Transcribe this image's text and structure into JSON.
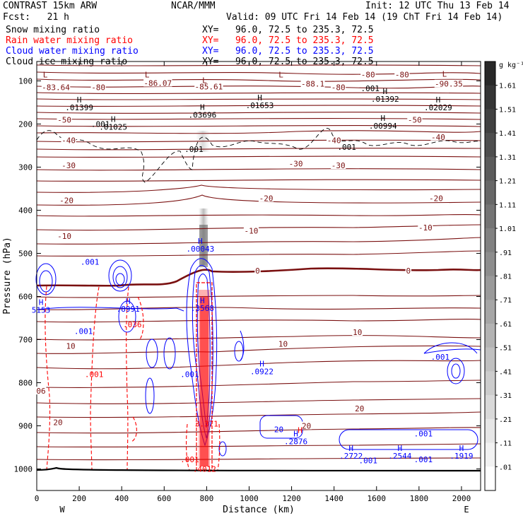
{
  "header": {
    "model": "CONTRAST 15km ARW",
    "center": "NCAR/MMM",
    "init": "Init: 12 UTC Thu 13 Feb 14",
    "fcst": "Fcst:   21 h",
    "valid": "Valid: 09 UTC Fri 14 Feb 14 (19 ChT Fri 14 Feb 14)"
  },
  "fields": [
    {
      "name": "Snow mixing ratio",
      "xy": "XY=   96.0, 72.5 to 235.3, 72.5",
      "color": "#000000"
    },
    {
      "name": "Rain water mixing ratio",
      "xy": "XY=   96.0, 72.5 to 235.3, 72.5",
      "color": "#ff0000"
    },
    {
      "name": "Cloud water mixing ratio",
      "xy": "XY=   96.0, 72.5 to 235.3, 72.5",
      "color": "#0000ff"
    },
    {
      "name": "Cloud ice mixing ratio",
      "xy": "XY=   96.0, 72.5 to 235.3, 72.5",
      "color": "#000000"
    }
  ],
  "chart_data": {
    "type": "heatmap",
    "xlabel": "Distance (km)",
    "ylabel": "Pressure (hPa)",
    "x_ticks": [
      0,
      200,
      400,
      600,
      800,
      1000,
      1200,
      1400,
      1600,
      1800,
      2000
    ],
    "y_ticks": [
      100,
      200,
      300,
      400,
      500,
      600,
      700,
      800,
      900,
      1000
    ],
    "xlim": [
      0,
      2090
    ],
    "ylim": [
      1050,
      55
    ],
    "x_end_labels": {
      "left": "W",
      "right": "E"
    },
    "colorbar": {
      "unit": "g kg⁻¹",
      "levels": [
        "1.61",
        "1.51",
        "1.41",
        "1.31",
        "1.21",
        "1.11",
        "1.01",
        ".91",
        ".81",
        ".71",
        ".61",
        ".51",
        ".41",
        ".31",
        ".21",
        ".11",
        ".01"
      ]
    },
    "temperature_labels": [
      {
        "text": "-83.64",
        "x": 90,
        "p": 115
      },
      {
        "text": "-80",
        "x": 290,
        "p": 115
      },
      {
        "text": "-86.07",
        "x": 570,
        "p": 105
      },
      {
        "text": "-85.61",
        "x": 810,
        "p": 113
      },
      {
        "text": "-88.1",
        "x": 1300,
        "p": 107
      },
      {
        "text": "-80",
        "x": 1420,
        "p": 115
      },
      {
        "text": "-80",
        "x": 1560,
        "p": 85
      },
      {
        "text": "-80",
        "x": 1720,
        "p": 85
      },
      {
        "text": "-90.35",
        "x": 1940,
        "p": 107
      },
      {
        "text": "-50",
        "x": 130,
        "p": 190
      },
      {
        "text": "-50",
        "x": 1780,
        "p": 190
      },
      {
        "text": "-40",
        "x": 150,
        "p": 238
      },
      {
        "text": "-40",
        "x": 1400,
        "p": 238
      },
      {
        "text": "-40",
        "x": 1890,
        "p": 230
      },
      {
        "text": "-30",
        "x": 150,
        "p": 296
      },
      {
        "text": "-30",
        "x": 1220,
        "p": 292
      },
      {
        "text": "-30",
        "x": 1420,
        "p": 296
      },
      {
        "text": "-20",
        "x": 140,
        "p": 377
      },
      {
        "text": "-20",
        "x": 1080,
        "p": 372
      },
      {
        "text": "-20",
        "x": 1880,
        "p": 372
      },
      {
        "text": "-10",
        "x": 130,
        "p": 460
      },
      {
        "text": "-10",
        "x": 1010,
        "p": 448
      },
      {
        "text": "-10",
        "x": 1830,
        "p": 440
      },
      {
        "text": "0",
        "x": 1040,
        "p": 540
      },
      {
        "text": "0",
        "x": 1750,
        "p": 540
      },
      {
        "text": "10",
        "x": 160,
        "p": 715
      },
      {
        "text": "10",
        "x": 1160,
        "p": 710
      },
      {
        "text": "10",
        "x": 1510,
        "p": 683
      },
      {
        "text": "20",
        "x": 100,
        "p": 892
      },
      {
        "text": "20",
        "x": 1520,
        "p": 860
      },
      {
        "text": "20",
        "x": 1270,
        "p": 900
      },
      {
        "text": "06",
        "x": 20,
        "p": 819
      }
    ],
    "extrema_labels": [
      {
        "letter": "L",
        "value": "",
        "x": 40,
        "p": 92
      },
      {
        "letter": "L",
        "value": "",
        "x": 520,
        "p": 92
      },
      {
        "letter": "L",
        "value": "",
        "x": 790,
        "p": 105
      },
      {
        "letter": "L",
        "value": "",
        "x": 1150,
        "p": 92
      },
      {
        "letter": "L",
        "value": "",
        "x": 1920,
        "p": 90
      },
      {
        "letter": "H",
        "value": ".01399",
        "x": 200,
        "p": 150
      },
      {
        "letter": "H",
        "value": ".01025",
        "x": 360,
        "p": 195
      },
      {
        "letter": "H",
        "value": ".03696",
        "x": 780,
        "p": 167
      },
      {
        "letter": "H",
        "value": ".01653",
        "x": 1050,
        "p": 145
      },
      {
        "letter": "H",
        "value": ".01392",
        "x": 1640,
        "p": 130
      },
      {
        "letter": "H",
        "value": ".02029",
        "x": 1890,
        "p": 150
      },
      {
        "letter": "H",
        "value": ".00994",
        "x": 1630,
        "p": 193
      },
      {
        "letter": "H",
        "value": ".00043",
        "x": 770,
        "p": 478
      },
      {
        "letter": "H",
        "value": ".3568",
        "x": 780,
        "p": 616
      },
      {
        "letter": "H",
        "value": ".8991",
        "x": 430,
        "p": 617
      },
      {
        "letter": "H",
        "value": "5153",
        "x": 20,
        "p": 620
      },
      {
        "letter": "H",
        "value": ".0922",
        "x": 1060,
        "p": 762
      },
      {
        "letter": "H",
        "value": ".2876",
        "x": 1220,
        "p": 925
      },
      {
        "letter": "H",
        "value": ".2722",
        "x": 1480,
        "p": 958
      },
      {
        "letter": "H",
        "value": ".2544",
        "x": 1710,
        "p": 958
      },
      {
        "letter": "H",
        "value": ".1919",
        "x": 2000,
        "p": 958
      }
    ],
    "mixing_labels": [
      {
        "text": ".001",
        "x": 300,
        "p": 200,
        "color": "#000000"
      },
      {
        "text": ".001",
        "x": 740,
        "p": 258,
        "color": "#000000"
      },
      {
        "text": ".001",
        "x": 1570,
        "p": 117,
        "color": "#000000"
      },
      {
        "text": ".001",
        "x": 1460,
        "p": 253,
        "color": "#000000"
      },
      {
        "text": ".001",
        "x": 250,
        "p": 520,
        "color": "#0000ff"
      },
      {
        "text": ".001",
        "x": 220,
        "p": 680,
        "color": "#0000ff"
      },
      {
        "text": ".001",
        "x": 720,
        "p": 780,
        "color": "#0000ff"
      },
      {
        "text": ".001",
        "x": 1900,
        "p": 740,
        "color": "#0000ff"
      },
      {
        "text": ".001",
        "x": 1820,
        "p": 918,
        "color": "#0000ff"
      },
      {
        "text": ".001",
        "x": 1820,
        "p": 978,
        "color": "#0000ff"
      },
      {
        "text": ".001",
        "x": 1560,
        "p": 980,
        "color": "#0000ff"
      },
      {
        "text": ".001",
        "x": 270,
        "p": 780,
        "color": "#ff0000"
      },
      {
        "text": ".001",
        "x": 720,
        "p": 978,
        "color": "#ff0000"
      },
      {
        "text": ".036",
        "x": 450,
        "p": 665,
        "color": "#ff0000"
      },
      {
        "text": "3.371",
        "x": 800,
        "p": 895,
        "color": "#ff0000"
      },
      {
        "text": ".4012",
        "x": 790,
        "p": 1000,
        "color": "#ff0000"
      },
      {
        "text": "20",
        "x": 1140,
        "p": 908,
        "color": "#0000ff"
      },
      {
        "text": "H",
        "x": 1240,
        "p": 910,
        "color": "#ff0000"
      }
    ]
  }
}
